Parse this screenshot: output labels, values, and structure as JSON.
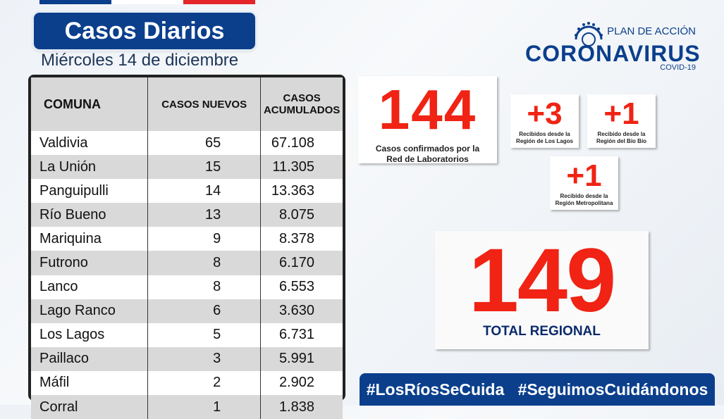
{
  "header": {
    "title": "Casos Diarios",
    "date": "Miércoles 14 de diciembre"
  },
  "logo": {
    "plan": "PLAN DE ACCIÓN",
    "name": "CORONAVIRUS",
    "sub": "COVID-19"
  },
  "table": {
    "headers": [
      "COMUNA",
      "CASOS NUEVOS",
      "CASOS",
      "ACUMULADOS"
    ],
    "rows": [
      {
        "comuna": "Valdivia",
        "nuevos": "65",
        "acumulados": "67.108"
      },
      {
        "comuna": "La Unión",
        "nuevos": "15",
        "acumulados": "11.305"
      },
      {
        "comuna": "Panguipulli",
        "nuevos": "14",
        "acumulados": "13.363"
      },
      {
        "comuna": "Río Bueno",
        "nuevos": "13",
        "acumulados": "8.075"
      },
      {
        "comuna": "Mariquina",
        "nuevos": "9",
        "acumulados": "8.378"
      },
      {
        "comuna": "Futrono",
        "nuevos": "8",
        "acumulados": "6.170"
      },
      {
        "comuna": "Lanco",
        "nuevos": "8",
        "acumulados": "6.553"
      },
      {
        "comuna": "Lago Ranco",
        "nuevos": "6",
        "acumulados": "3.630"
      },
      {
        "comuna": "Los Lagos",
        "nuevos": "5",
        "acumulados": "6.731"
      },
      {
        "comuna": "Paillaco",
        "nuevos": "3",
        "acumulados": "5.991"
      },
      {
        "comuna": "Máfil",
        "nuevos": "2",
        "acumulados": "2.902"
      },
      {
        "comuna": "Corral",
        "nuevos": "1",
        "acumulados": "1.838"
      }
    ]
  },
  "cards": {
    "confirmados": {
      "value": "144",
      "label1": "Casos confirmados por la",
      "label2": "Red de Laboratorios"
    },
    "lagos": {
      "value": "+3",
      "label1": "Recibidos desde la",
      "label2": "Región de Los Lagos"
    },
    "biobio": {
      "value": "+1",
      "label1": "Recibido desde la",
      "label2": "Región del Bío Bío"
    },
    "metro": {
      "value": "+1",
      "label1": "Recibido desde la",
      "label2": "Región Metropolitana"
    }
  },
  "total": {
    "value": "149",
    "label": "TOTAL REGIONAL"
  },
  "hashtags": [
    "#LosRíosSeCuida",
    "#SeguimosCuidándonos"
  ],
  "colors": {
    "brand_blue": "#0b3f8c",
    "accent_red": "#f02314"
  }
}
